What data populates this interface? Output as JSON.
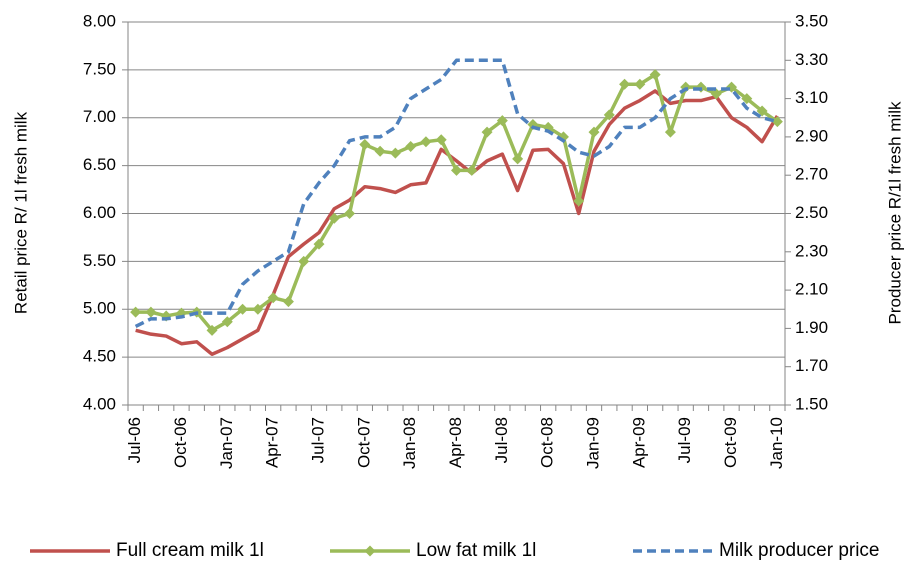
{
  "chart_data": {
    "type": "line",
    "y_label": "Retail price R/ 1l  fresh milk",
    "y2_label": "Producer price R/1l fresh milk",
    "categories": [
      "Jul-06",
      null,
      null,
      "Oct-06",
      null,
      null,
      "Jan-07",
      null,
      null,
      "Apr-07",
      null,
      null,
      "Jul-07",
      null,
      null,
      "Oct-07",
      null,
      null,
      "Jan-08",
      null,
      null,
      "Apr-08",
      null,
      null,
      "Jul-08",
      null,
      null,
      "Oct-08",
      null,
      null,
      "Jan-09",
      null,
      null,
      "Apr-09",
      null,
      null,
      "Jul-09",
      null,
      null,
      "Oct-09",
      null,
      null,
      "Jan-10"
    ],
    "series": [
      {
        "name": "Full cream milk 1l",
        "color": "#c0504d",
        "values": [
          4.78,
          4.74,
          4.72,
          4.64,
          4.66,
          4.53,
          4.6,
          4.69,
          4.78,
          5.15,
          5.55,
          5.68,
          5.8,
          6.05,
          6.14,
          6.28,
          6.26,
          6.22,
          6.3,
          6.32,
          6.67,
          6.55,
          6.42,
          6.55,
          6.62,
          6.24,
          6.66,
          6.67,
          6.52,
          6.0,
          6.65,
          6.93,
          7.1,
          7.18,
          7.28,
          7.15,
          7.18,
          7.18,
          7.22,
          7.0,
          6.9,
          6.75,
          7.02
        ]
      },
      {
        "name": "Low fat milk 1l",
        "color": "#9bbb59",
        "marker": "diamond",
        "values": [
          4.97,
          4.97,
          4.93,
          4.96,
          4.97,
          4.78,
          4.87,
          5.0,
          5.0,
          5.12,
          5.08,
          5.5,
          5.68,
          5.95,
          6.0,
          6.72,
          6.65,
          6.63,
          6.7,
          6.75,
          6.77,
          6.45,
          6.45,
          6.85,
          6.97,
          6.57,
          6.93,
          6.9,
          6.8,
          6.13,
          6.85,
          7.03,
          7.35,
          7.35,
          7.45,
          6.85,
          7.32,
          7.32,
          7.25,
          7.32,
          7.2,
          7.07,
          6.96
        ]
      },
      {
        "name": "Milk producer price",
        "color": "#4f81bd",
        "dash": true,
        "axis": "y2",
        "values": [
          1.91,
          1.95,
          1.95,
          1.96,
          1.98,
          1.98,
          1.98,
          2.13,
          2.2,
          2.25,
          2.3,
          2.55,
          2.66,
          2.75,
          2.88,
          2.9,
          2.9,
          2.95,
          3.1,
          3.15,
          3.2,
          3.3,
          3.3,
          3.3,
          3.3,
          3.02,
          2.95,
          2.93,
          2.88,
          2.82,
          2.8,
          2.85,
          2.95,
          2.95,
          3.0,
          3.1,
          3.15,
          3.15,
          3.15,
          3.15,
          3.05,
          3.0,
          2.98
        ]
      }
    ],
    "ylim": [
      4,
      8
    ],
    "yticks": [
      {
        "value": 4,
        "label": "4.00"
      },
      {
        "value": 4.5,
        "label": "4.50"
      },
      {
        "value": 5,
        "label": "5.00"
      },
      {
        "value": 5.5,
        "label": "5.50"
      },
      {
        "value": 6,
        "label": "6.00"
      },
      {
        "value": 6.5,
        "label": "6.50"
      },
      {
        "value": 7,
        "label": "7.00"
      },
      {
        "value": 7.5,
        "label": "7.50"
      },
      {
        "value": 8,
        "label": "8.00"
      }
    ],
    "y2lim": [
      1.5,
      3.5
    ],
    "y2ticks": [
      {
        "value": 1.5,
        "label": "1.50"
      },
      {
        "value": 1.7,
        "label": "1.70"
      },
      {
        "value": 1.9,
        "label": "1.90"
      },
      {
        "value": 2.1,
        "label": "2.10"
      },
      {
        "value": 2.3,
        "label": "2.30"
      },
      {
        "value": 2.5,
        "label": "2.50"
      },
      {
        "value": 2.7,
        "label": "2.70"
      },
      {
        "value": 2.9,
        "label": "2.90"
      },
      {
        "value": 3.1,
        "label": "3.10"
      },
      {
        "value": 3.3,
        "label": "3.30"
      },
      {
        "value": 3.5,
        "label": "3.50"
      }
    ],
    "grid": true
  }
}
